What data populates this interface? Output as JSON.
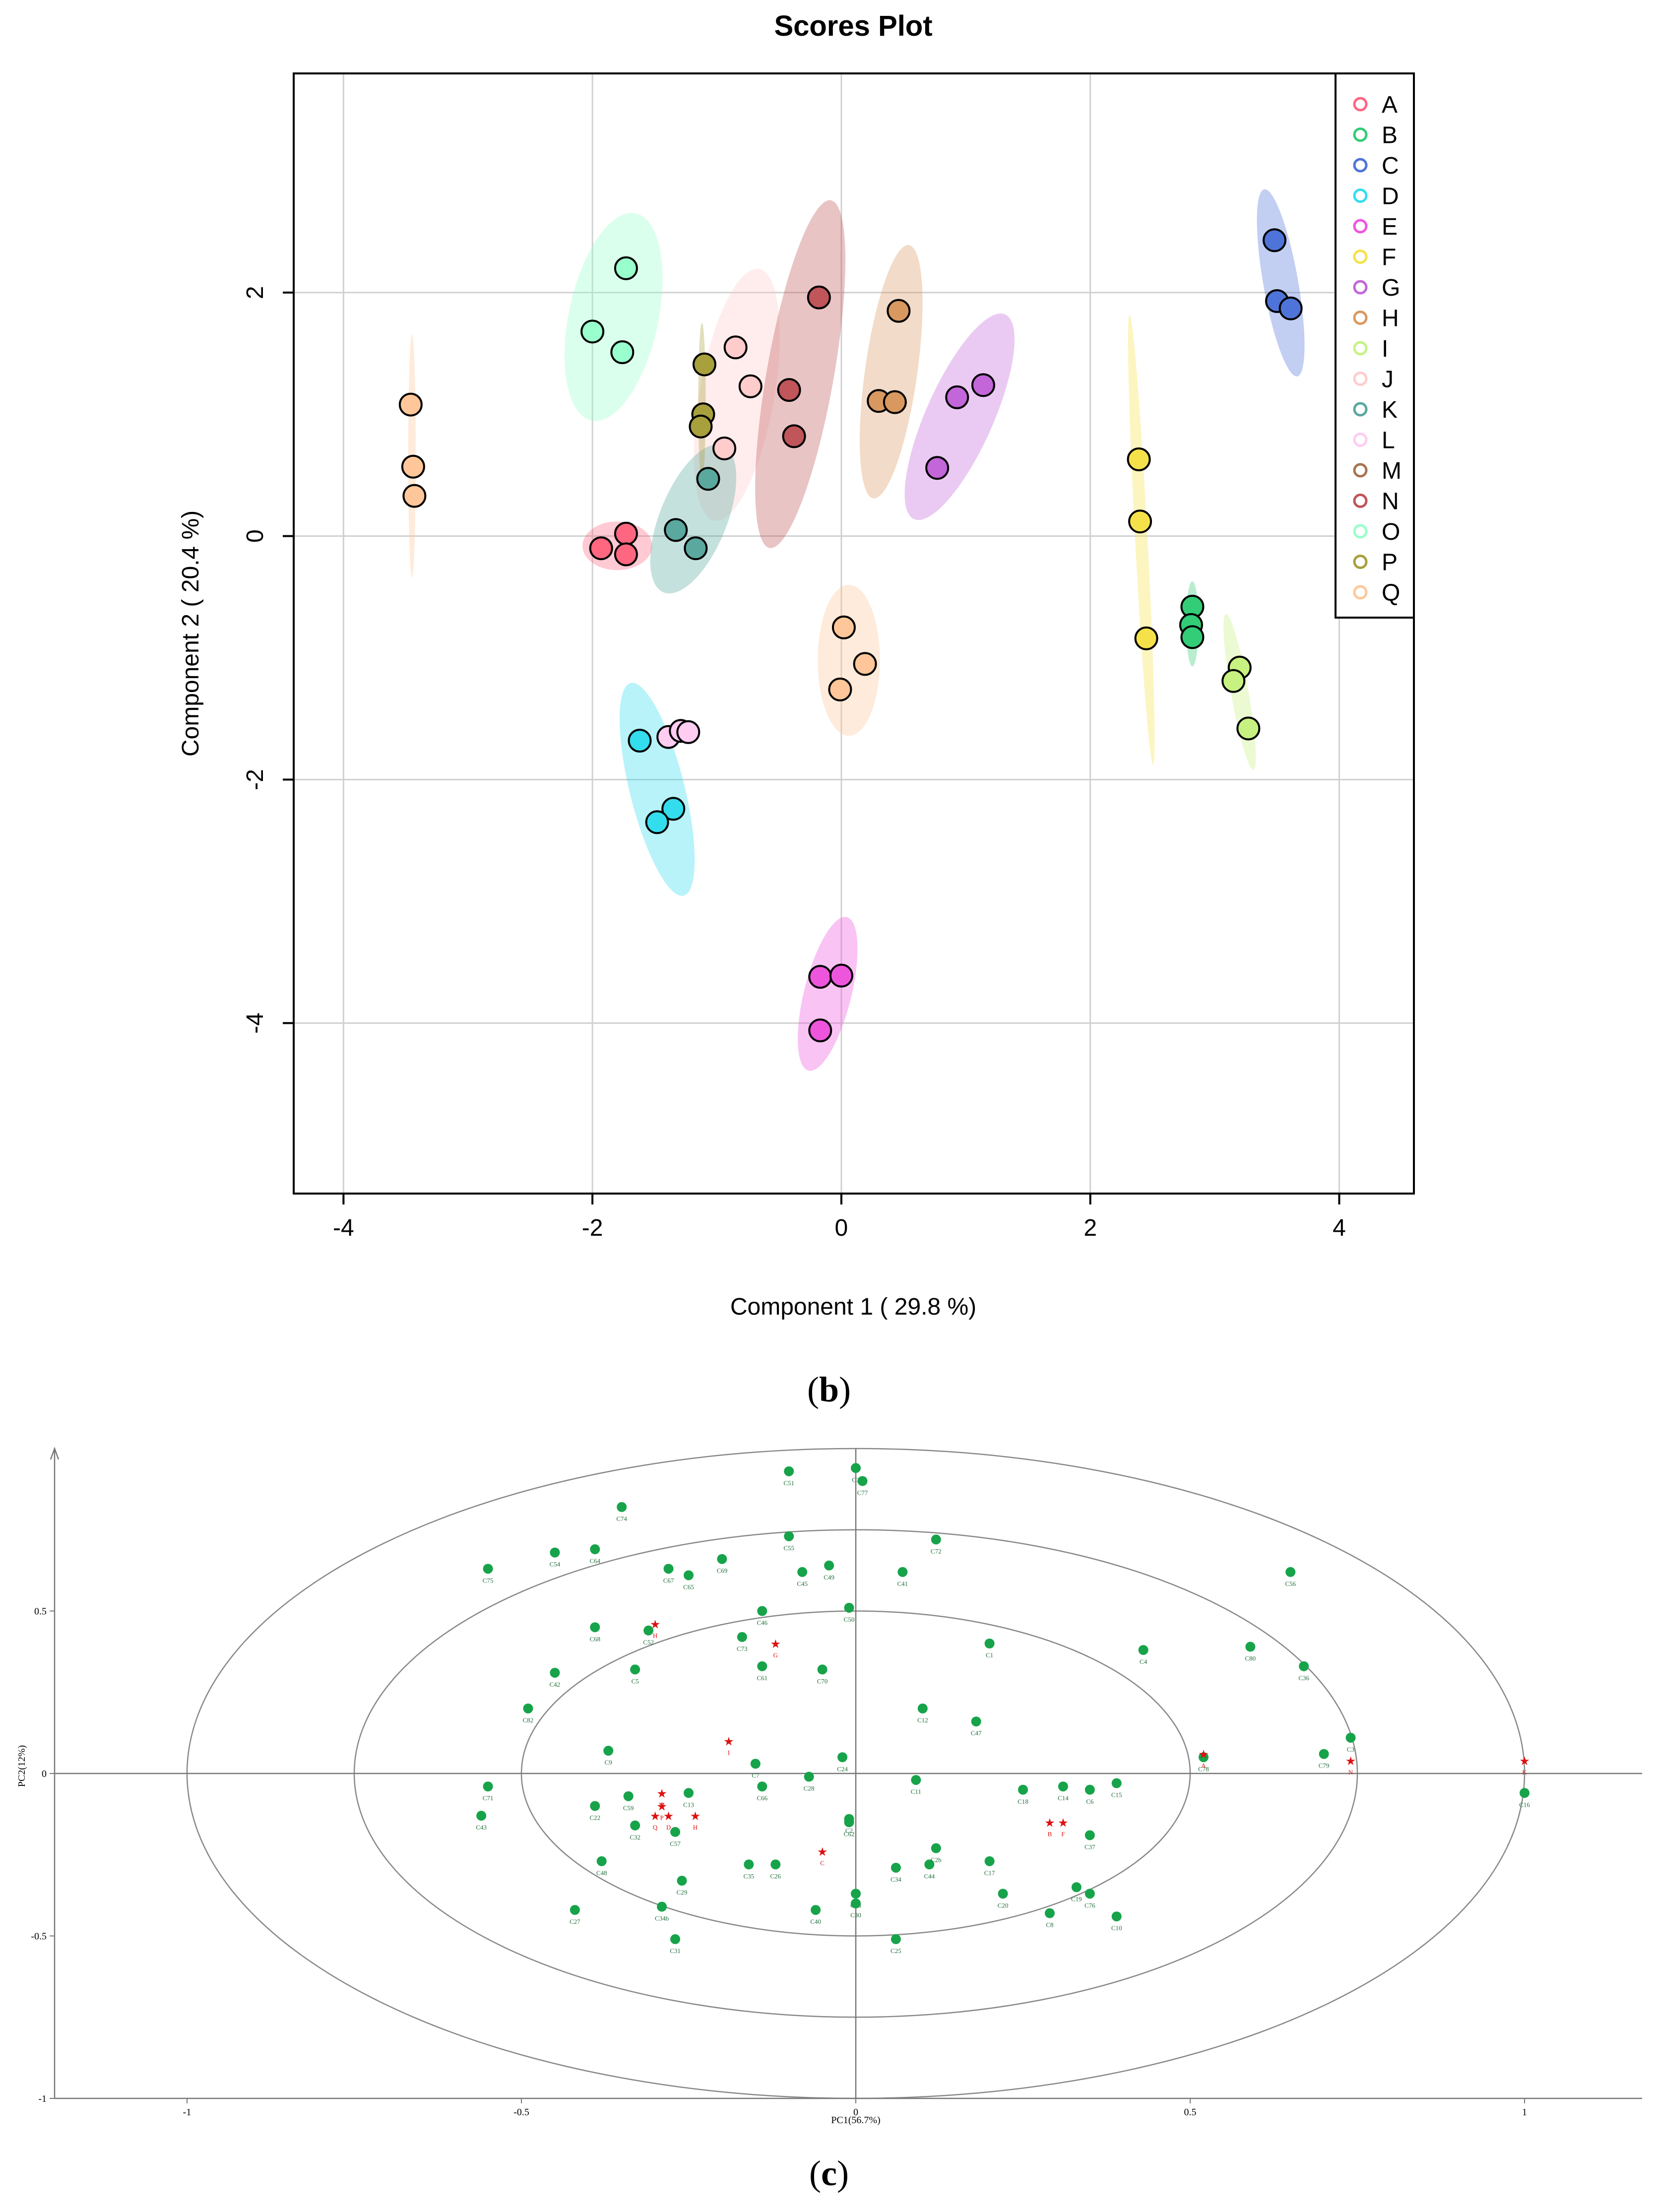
{
  "captions": {
    "b": "b",
    "c": "c"
  },
  "chart_data": [
    {
      "type": "scatter",
      "title": "Scores Plot",
      "xlabel": "Component 1 ( 29.8 %)",
      "ylabel": "Component 2 ( 20.4 %)",
      "xlim": [
        -4.4,
        4.6
      ],
      "ylim": [
        -5.4,
        3.8
      ],
      "xticks": [
        -4,
        -2,
        0,
        2,
        4
      ],
      "yticks": [
        -4,
        -2,
        0,
        2
      ],
      "xtick_labels": [
        "-4",
        "-2",
        "0",
        "2",
        "4"
      ],
      "ytick_labels": [
        "-4",
        "-2",
        "0",
        "2"
      ],
      "grid": true,
      "legend_position": "top-right",
      "series": [
        {
          "name": "A",
          "color": "#ff6680",
          "points": [
            [
              -1.93,
              -0.1
            ],
            [
              -1.73,
              0.02
            ],
            [
              -1.73,
              -0.15
            ]
          ],
          "ellipse": {
            "cx": -1.8,
            "cy": -0.08,
            "rx": 0.28,
            "ry": 0.2,
            "angle": 0
          }
        },
        {
          "name": "B",
          "color": "#33cc77",
          "points": [
            [
              2.82,
              -0.58
            ],
            [
              2.81,
              -0.73
            ],
            [
              2.82,
              -0.83
            ]
          ],
          "ellipse": {
            "cx": 2.82,
            "cy": -0.72,
            "rx": 0.05,
            "ry": 0.35,
            "angle": 0
          }
        },
        {
          "name": "C",
          "color": "#4f74d9",
          "points": [
            [
              3.48,
              2.43
            ],
            [
              3.5,
              1.93
            ],
            [
              3.61,
              1.87
            ]
          ],
          "ellipse": {
            "cx": 3.53,
            "cy": 2.08,
            "rx": 0.14,
            "ry": 0.78,
            "angle": -10
          }
        },
        {
          "name": "D",
          "color": "#33ddee",
          "points": [
            [
              -1.62,
              -1.68
            ],
            [
              -1.35,
              -2.24
            ],
            [
              -1.48,
              -2.35
            ]
          ],
          "ellipse": {
            "cx": -1.48,
            "cy": -2.08,
            "rx": 0.22,
            "ry": 0.9,
            "angle": -14
          }
        },
        {
          "name": "E",
          "color": "#ee55dd",
          "points": [
            [
              -0.17,
              -3.62
            ],
            [
              0.0,
              -3.61
            ],
            [
              -0.17,
              -4.06
            ]
          ],
          "ellipse": {
            "cx": -0.11,
            "cy": -3.76,
            "rx": 0.19,
            "ry": 0.65,
            "angle": 14
          }
        },
        {
          "name": "F",
          "color": "#f5e24a",
          "points": [
            [
              2.39,
              0.63
            ],
            [
              2.4,
              0.12
            ],
            [
              2.45,
              -0.84
            ]
          ],
          "ellipse": {
            "cx": 2.41,
            "cy": -0.03,
            "rx": 0.05,
            "ry": 1.85,
            "angle": -3
          }
        },
        {
          "name": "G",
          "color": "#c266d9",
          "points": [
            [
              0.93,
              1.14
            ],
            [
              1.14,
              1.24
            ],
            [
              0.77,
              0.56
            ]
          ],
          "ellipse": {
            "cx": 0.95,
            "cy": 0.98,
            "rx": 0.27,
            "ry": 0.92,
            "angle": 24
          }
        },
        {
          "name": "H",
          "color": "#d99860",
          "points": [
            [
              0.46,
              1.85
            ],
            [
              0.3,
              1.11
            ],
            [
              0.43,
              1.1
            ]
          ],
          "ellipse": {
            "cx": 0.4,
            "cy": 1.35,
            "rx": 0.21,
            "ry": 1.05,
            "angle": 8
          }
        },
        {
          "name": "I",
          "color": "#c7f281",
          "points": [
            [
              3.2,
              -1.08
            ],
            [
              3.15,
              -1.19
            ],
            [
              3.27,
              -1.58
            ]
          ],
          "ellipse": {
            "cx": 3.2,
            "cy": -1.28,
            "rx": 0.07,
            "ry": 0.65,
            "angle": -10
          }
        },
        {
          "name": "J",
          "color": "#ffcccc",
          "points": [
            [
              -0.85,
              1.55
            ],
            [
              -0.73,
              1.23
            ],
            [
              -0.94,
              0.72
            ]
          ],
          "ellipse": {
            "cx": -0.84,
            "cy": 1.16,
            "rx": 0.3,
            "ry": 1.05,
            "angle": 10
          }
        },
        {
          "name": "K",
          "color": "#5aa89e",
          "points": [
            [
              -1.33,
              0.05
            ],
            [
              -1.17,
              -0.1
            ],
            [
              -1.07,
              0.47
            ]
          ],
          "ellipse": {
            "cx": -1.19,
            "cy": 0.14,
            "rx": 0.27,
            "ry": 0.65,
            "angle": 22
          }
        },
        {
          "name": "L",
          "color": "#ffccf2",
          "points": [
            [
              -1.39,
              -1.65
            ],
            [
              -1.29,
              -1.6
            ],
            [
              -1.23,
              -1.61
            ]
          ],
          "ellipse": null
        },
        {
          "name": "M",
          "color": "#a87450",
          "points": [],
          "ellipse": null
        },
        {
          "name": "N",
          "color": "#c0555a",
          "points": [
            [
              -0.18,
              1.96
            ],
            [
              -0.42,
              1.2
            ],
            [
              -0.38,
              0.82
            ]
          ],
          "ellipse": {
            "cx": -0.33,
            "cy": 1.33,
            "rx": 0.27,
            "ry": 1.45,
            "angle": 10
          }
        },
        {
          "name": "O",
          "color": "#99ffcc",
          "points": [
            [
              -1.73,
              2.2
            ],
            [
              -2.0,
              1.68
            ],
            [
              -1.76,
              1.51
            ]
          ],
          "ellipse": {
            "cx": -1.83,
            "cy": 1.8,
            "rx": 0.36,
            "ry": 0.87,
            "angle": 12
          }
        },
        {
          "name": "P",
          "color": "#a8a03c",
          "points": [
            [
              -1.1,
              1.41
            ],
            [
              -1.11,
              1.0
            ],
            [
              -1.13,
              0.9
            ]
          ],
          "ellipse": {
            "cx": -1.12,
            "cy": 1.1,
            "rx": 0.03,
            "ry": 0.65,
            "angle": 0
          }
        },
        {
          "name": "Q",
          "color": "#ffc799",
          "points": [
            [
              -3.46,
              1.08
            ],
            [
              -3.44,
              0.57
            ],
            [
              -3.43,
              0.33
            ]
          ],
          "ellipse": {
            "cx": -3.45,
            "cy": 0.66,
            "rx": 0.03,
            "ry": 1.0,
            "angle": 0
          },
          "extra": [
            [
              0.02,
              -0.75
            ],
            [
              0.19,
              -1.05
            ],
            [
              -0.01,
              -1.26
            ]
          ],
          "extra_ellipse": {
            "cx": 0.06,
            "cy": -1.02,
            "rx": 0.25,
            "ry": 0.62,
            "angle": 0
          }
        }
      ]
    },
    {
      "type": "scatter",
      "title": "",
      "xlabel": "PC1(56.7%)",
      "ylabel": "PC2(12%)",
      "xlim": [
        -1.2,
        1.2
      ],
      "ylim": [
        -1.0,
        1.0
      ],
      "xticks": [
        -1,
        -0.5,
        0,
        0.5,
        1
      ],
      "yticks": [
        -1,
        -0.5,
        0,
        0.5
      ],
      "xtick_labels": [
        "-1",
        "-0.5",
        "0",
        "0.5",
        "1"
      ],
      "ytick_labels": [
        "-1",
        "-0.5",
        "0",
        "0.5"
      ],
      "grid": false,
      "ellipses": [
        [
          0.5,
          0.5
        ],
        [
          0.75,
          0.75
        ],
        [
          1.0,
          1.0
        ]
      ],
      "samples": [
        {
          "label": "C51",
          "x": -0.1,
          "y": 0.93
        },
        {
          "label": "C3",
          "x": 0.0,
          "y": 0.94
        },
        {
          "label": "C77",
          "x": 0.01,
          "y": 0.9
        },
        {
          "label": "C74",
          "x": -0.35,
          "y": 0.82
        },
        {
          "label": "C55",
          "x": -0.1,
          "y": 0.73
        },
        {
          "label": "C72",
          "x": 0.12,
          "y": 0.72
        },
        {
          "label": "C75",
          "x": -0.55,
          "y": 0.63
        },
        {
          "label": "C54",
          "x": -0.45,
          "y": 0.68
        },
        {
          "label": "C64",
          "x": -0.39,
          "y": 0.69
        },
        {
          "label": "C69",
          "x": -0.2,
          "y": 0.66
        },
        {
          "label": "C67",
          "x": -0.28,
          "y": 0.63
        },
        {
          "label": "C65",
          "x": -0.25,
          "y": 0.61
        },
        {
          "label": "C45",
          "x": -0.08,
          "y": 0.62
        },
        {
          "label": "C49",
          "x": -0.04,
          "y": 0.64
        },
        {
          "label": "C41",
          "x": 0.07,
          "y": 0.62
        },
        {
          "label": "C56",
          "x": 0.65,
          "y": 0.62
        },
        {
          "label": "C68",
          "x": -0.39,
          "y": 0.45
        },
        {
          "label": "C52",
          "x": -0.31,
          "y": 0.44
        },
        {
          "label": "C46",
          "x": -0.14,
          "y": 0.5
        },
        {
          "label": "C50",
          "x": -0.01,
          "y": 0.51
        },
        {
          "label": "C73",
          "x": -0.17,
          "y": 0.42
        },
        {
          "label": "C1",
          "x": 0.2,
          "y": 0.4
        },
        {
          "label": "C4",
          "x": 0.43,
          "y": 0.38
        },
        {
          "label": "C80",
          "x": 0.59,
          "y": 0.39
        },
        {
          "label": "C36",
          "x": 0.67,
          "y": 0.33
        },
        {
          "label": "C42",
          "x": -0.45,
          "y": 0.31
        },
        {
          "label": "C5",
          "x": -0.33,
          "y": 0.32
        },
        {
          "label": "C61",
          "x": -0.14,
          "y": 0.33
        },
        {
          "label": "C70",
          "x": -0.05,
          "y": 0.32
        },
        {
          "label": "C82",
          "x": -0.49,
          "y": 0.2
        },
        {
          "label": "C12",
          "x": 0.1,
          "y": 0.2
        },
        {
          "label": "C47",
          "x": 0.18,
          "y": 0.16
        },
        {
          "label": "C9",
          "x": -0.37,
          "y": 0.07
        },
        {
          "label": "C7",
          "x": -0.15,
          "y": 0.03
        },
        {
          "label": "C24",
          "x": -0.02,
          "y": 0.05
        },
        {
          "label": "C78",
          "x": 0.52,
          "y": 0.05
        },
        {
          "label": "C79",
          "x": 0.7,
          "y": 0.06
        },
        {
          "label": "C3",
          "x": 0.74,
          "y": 0.11
        },
        {
          "label": "C71",
          "x": -0.55,
          "y": -0.04
        },
        {
          "label": "C43",
          "x": -0.56,
          "y": -0.13
        },
        {
          "label": "C22",
          "x": -0.39,
          "y": -0.1
        },
        {
          "label": "C59",
          "x": -0.34,
          "y": -0.07
        },
        {
          "label": "C32",
          "x": -0.33,
          "y": -0.16
        },
        {
          "label": "C57",
          "x": -0.27,
          "y": -0.18
        },
        {
          "label": "C13",
          "x": -0.25,
          "y": -0.06
        },
        {
          "label": "C66",
          "x": -0.14,
          "y": -0.04
        },
        {
          "label": "C28",
          "x": -0.07,
          "y": -0.01
        },
        {
          "label": "C11",
          "x": 0.09,
          "y": -0.02
        },
        {
          "label": "C18",
          "x": 0.25,
          "y": -0.05
        },
        {
          "label": "C14",
          "x": 0.31,
          "y": -0.04
        },
        {
          "label": "C6",
          "x": 0.35,
          "y": -0.05
        },
        {
          "label": "C15",
          "x": 0.39,
          "y": -0.03
        },
        {
          "label": "C16",
          "x": 1.0,
          "y": -0.06
        },
        {
          "label": "C2",
          "x": -0.01,
          "y": -0.14
        },
        {
          "label": "C62",
          "x": -0.01,
          "y": -0.15
        },
        {
          "label": "C37",
          "x": 0.35,
          "y": -0.19
        },
        {
          "label": "C48",
          "x": -0.38,
          "y": -0.27
        },
        {
          "label": "C35",
          "x": -0.16,
          "y": -0.28
        },
        {
          "label": "C26",
          "x": -0.12,
          "y": -0.28
        },
        {
          "label": "C34",
          "x": 0.06,
          "y": -0.29
        },
        {
          "label": "C44",
          "x": 0.11,
          "y": -0.28
        },
        {
          "label": "C2b",
          "x": 0.12,
          "y": -0.23
        },
        {
          "label": "C17",
          "x": 0.2,
          "y": -0.27
        },
        {
          "label": "C29",
          "x": -0.26,
          "y": -0.33
        },
        {
          "label": "C38",
          "x": 0.0,
          "y": -0.37
        },
        {
          "label": "C30",
          "x": 0.0,
          "y": -0.4
        },
        {
          "label": "C20",
          "x": 0.22,
          "y": -0.37
        },
        {
          "label": "C19",
          "x": 0.33,
          "y": -0.35
        },
        {
          "label": "C76",
          "x": 0.35,
          "y": -0.37
        },
        {
          "label": "C27",
          "x": -0.42,
          "y": -0.42
        },
        {
          "label": "C34b",
          "x": -0.29,
          "y": -0.41
        },
        {
          "label": "C40",
          "x": -0.06,
          "y": -0.42
        },
        {
          "label": "C8",
          "x": 0.29,
          "y": -0.43
        },
        {
          "label": "C10",
          "x": 0.39,
          "y": -0.44
        },
        {
          "label": "C31",
          "x": -0.27,
          "y": -0.51
        },
        {
          "label": "C25",
          "x": 0.06,
          "y": -0.51
        }
      ],
      "reference_points": [
        {
          "label": "G",
          "x": -0.12,
          "y": 0.4
        },
        {
          "label": "I",
          "x": -0.19,
          "y": 0.1
        },
        {
          "label": "H",
          "x": -0.3,
          "y": 0.46
        },
        {
          "label": "M",
          "x": -0.29,
          "y": -0.06
        },
        {
          "label": "P",
          "x": -0.29,
          "y": -0.1
        },
        {
          "label": "Q",
          "x": -0.3,
          "y": -0.13
        },
        {
          "label": "D",
          "x": -0.28,
          "y": -0.13
        },
        {
          "label": "H",
          "x": -0.24,
          "y": -0.13
        },
        {
          "label": "C",
          "x": -0.05,
          "y": -0.24
        },
        {
          "label": "B",
          "x": 0.29,
          "y": -0.15
        },
        {
          "label": "F",
          "x": 0.31,
          "y": -0.15
        },
        {
          "label": "A",
          "x": 0.52,
          "y": 0.06
        },
        {
          "label": "N",
          "x": 0.74,
          "y": 0.04
        },
        {
          "label": "K",
          "x": 1.0,
          "y": 0.04
        }
      ]
    }
  ]
}
